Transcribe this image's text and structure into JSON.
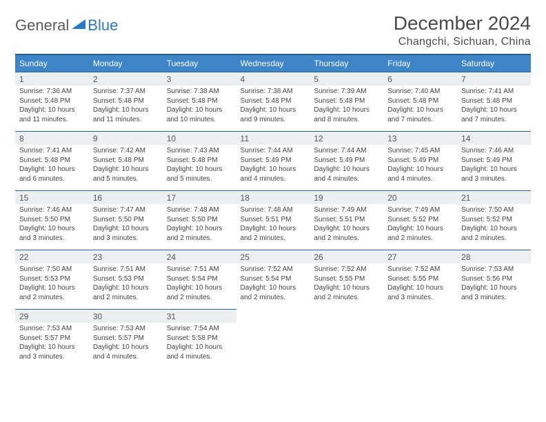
{
  "logo": {
    "text1": "General",
    "text2": "Blue"
  },
  "title": "December 2024",
  "location": "Changchi, Sichuan, China",
  "colors": {
    "header_bg": "#3d85c6",
    "header_border": "#2b5f8e",
    "daynum_bg": "#eceff1",
    "text": "#3a3a3a",
    "logo_blue": "#2b79c2"
  },
  "weekdays": [
    "Sunday",
    "Monday",
    "Tuesday",
    "Wednesday",
    "Thursday",
    "Friday",
    "Saturday"
  ],
  "weeks": [
    [
      {
        "n": "1",
        "sr": "Sunrise: 7:36 AM",
        "ss": "Sunset: 5:48 PM",
        "dl": "Daylight: 10 hours and 11 minutes."
      },
      {
        "n": "2",
        "sr": "Sunrise: 7:37 AM",
        "ss": "Sunset: 5:48 PM",
        "dl": "Daylight: 10 hours and 11 minutes."
      },
      {
        "n": "3",
        "sr": "Sunrise: 7:38 AM",
        "ss": "Sunset: 5:48 PM",
        "dl": "Daylight: 10 hours and 10 minutes."
      },
      {
        "n": "4",
        "sr": "Sunrise: 7:38 AM",
        "ss": "Sunset: 5:48 PM",
        "dl": "Daylight: 10 hours and 9 minutes."
      },
      {
        "n": "5",
        "sr": "Sunrise: 7:39 AM",
        "ss": "Sunset: 5:48 PM",
        "dl": "Daylight: 10 hours and 8 minutes."
      },
      {
        "n": "6",
        "sr": "Sunrise: 7:40 AM",
        "ss": "Sunset: 5:48 PM",
        "dl": "Daylight: 10 hours and 7 minutes."
      },
      {
        "n": "7",
        "sr": "Sunrise: 7:41 AM",
        "ss": "Sunset: 5:48 PM",
        "dl": "Daylight: 10 hours and 7 minutes."
      }
    ],
    [
      {
        "n": "8",
        "sr": "Sunrise: 7:41 AM",
        "ss": "Sunset: 5:48 PM",
        "dl": "Daylight: 10 hours and 6 minutes."
      },
      {
        "n": "9",
        "sr": "Sunrise: 7:42 AM",
        "ss": "Sunset: 5:48 PM",
        "dl": "Daylight: 10 hours and 5 minutes."
      },
      {
        "n": "10",
        "sr": "Sunrise: 7:43 AM",
        "ss": "Sunset: 5:48 PM",
        "dl": "Daylight: 10 hours and 5 minutes."
      },
      {
        "n": "11",
        "sr": "Sunrise: 7:44 AM",
        "ss": "Sunset: 5:49 PM",
        "dl": "Daylight: 10 hours and 4 minutes."
      },
      {
        "n": "12",
        "sr": "Sunrise: 7:44 AM",
        "ss": "Sunset: 5:49 PM",
        "dl": "Daylight: 10 hours and 4 minutes."
      },
      {
        "n": "13",
        "sr": "Sunrise: 7:45 AM",
        "ss": "Sunset: 5:49 PM",
        "dl": "Daylight: 10 hours and 4 minutes."
      },
      {
        "n": "14",
        "sr": "Sunrise: 7:46 AM",
        "ss": "Sunset: 5:49 PM",
        "dl": "Daylight: 10 hours and 3 minutes."
      }
    ],
    [
      {
        "n": "15",
        "sr": "Sunrise: 7:46 AM",
        "ss": "Sunset: 5:50 PM",
        "dl": "Daylight: 10 hours and 3 minutes."
      },
      {
        "n": "16",
        "sr": "Sunrise: 7:47 AM",
        "ss": "Sunset: 5:50 PM",
        "dl": "Daylight: 10 hours and 3 minutes."
      },
      {
        "n": "17",
        "sr": "Sunrise: 7:48 AM",
        "ss": "Sunset: 5:50 PM",
        "dl": "Daylight: 10 hours and 2 minutes."
      },
      {
        "n": "18",
        "sr": "Sunrise: 7:48 AM",
        "ss": "Sunset: 5:51 PM",
        "dl": "Daylight: 10 hours and 2 minutes."
      },
      {
        "n": "19",
        "sr": "Sunrise: 7:49 AM",
        "ss": "Sunset: 5:51 PM",
        "dl": "Daylight: 10 hours and 2 minutes."
      },
      {
        "n": "20",
        "sr": "Sunrise: 7:49 AM",
        "ss": "Sunset: 5:52 PM",
        "dl": "Daylight: 10 hours and 2 minutes."
      },
      {
        "n": "21",
        "sr": "Sunrise: 7:50 AM",
        "ss": "Sunset: 5:52 PM",
        "dl": "Daylight: 10 hours and 2 minutes."
      }
    ],
    [
      {
        "n": "22",
        "sr": "Sunrise: 7:50 AM",
        "ss": "Sunset: 5:53 PM",
        "dl": "Daylight: 10 hours and 2 minutes."
      },
      {
        "n": "23",
        "sr": "Sunrise: 7:51 AM",
        "ss": "Sunset: 5:53 PM",
        "dl": "Daylight: 10 hours and 2 minutes."
      },
      {
        "n": "24",
        "sr": "Sunrise: 7:51 AM",
        "ss": "Sunset: 5:54 PM",
        "dl": "Daylight: 10 hours and 2 minutes."
      },
      {
        "n": "25",
        "sr": "Sunrise: 7:52 AM",
        "ss": "Sunset: 5:54 PM",
        "dl": "Daylight: 10 hours and 2 minutes."
      },
      {
        "n": "26",
        "sr": "Sunrise: 7:52 AM",
        "ss": "Sunset: 5:55 PM",
        "dl": "Daylight: 10 hours and 2 minutes."
      },
      {
        "n": "27",
        "sr": "Sunrise: 7:52 AM",
        "ss": "Sunset: 5:55 PM",
        "dl": "Daylight: 10 hours and 3 minutes."
      },
      {
        "n": "28",
        "sr": "Sunrise: 7:53 AM",
        "ss": "Sunset: 5:56 PM",
        "dl": "Daylight: 10 hours and 3 minutes."
      }
    ],
    [
      {
        "n": "29",
        "sr": "Sunrise: 7:53 AM",
        "ss": "Sunset: 5:57 PM",
        "dl": "Daylight: 10 hours and 3 minutes."
      },
      {
        "n": "30",
        "sr": "Sunrise: 7:53 AM",
        "ss": "Sunset: 5:57 PM",
        "dl": "Daylight: 10 hours and 4 minutes."
      },
      {
        "n": "31",
        "sr": "Sunrise: 7:54 AM",
        "ss": "Sunset: 5:58 PM",
        "dl": "Daylight: 10 hours and 4 minutes."
      },
      null,
      null,
      null,
      null
    ]
  ]
}
